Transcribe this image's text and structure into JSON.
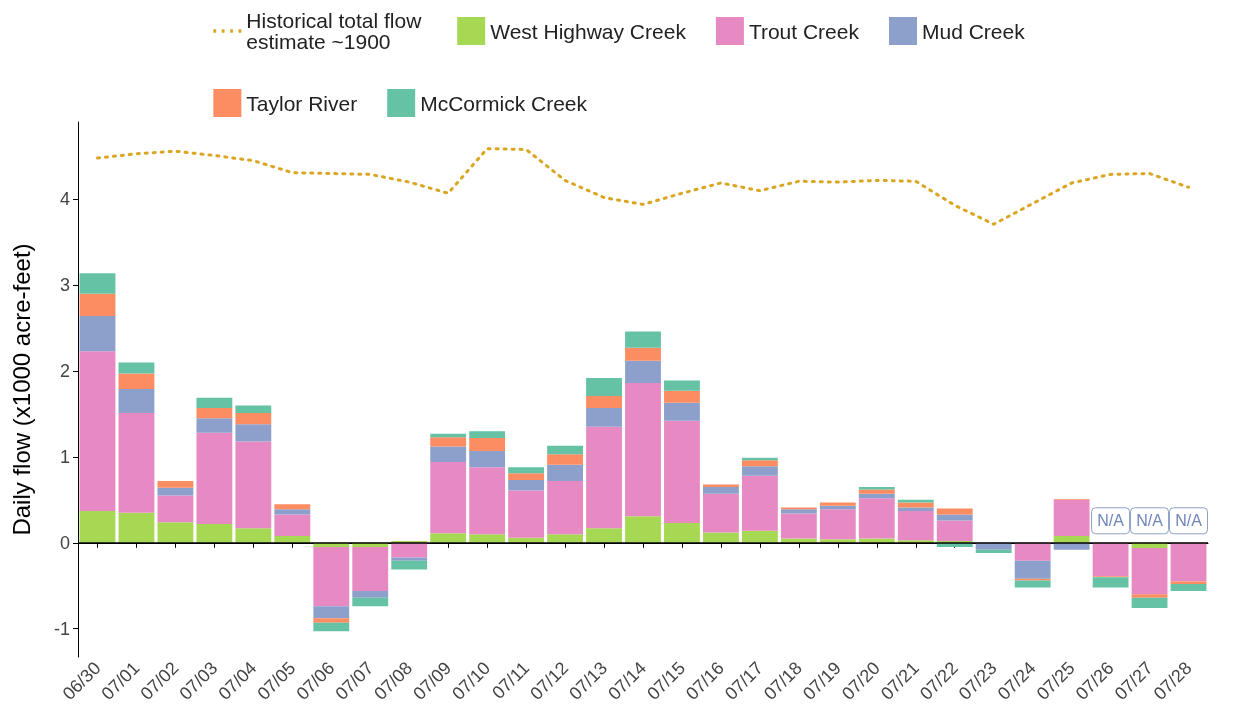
{
  "chart_data": {
    "type": "bar",
    "stacked": true,
    "ylabel": "Daily flow (x1000 acre-feet)",
    "categories": [
      "06/30",
      "07/01",
      "07/02",
      "07/03",
      "07/04",
      "07/05",
      "07/06",
      "07/07",
      "07/08",
      "07/09",
      "07/10",
      "07/11",
      "07/12",
      "07/13",
      "07/14",
      "07/15",
      "07/16",
      "07/17",
      "07/18",
      "07/19",
      "07/20",
      "07/21",
      "07/22",
      "07/23",
      "07/24",
      "07/25",
      "07/26",
      "07/27",
      "07/28"
    ],
    "series": [
      {
        "name": "Historical total flow estimate ~1900",
        "type": "line",
        "color": "#daa520",
        "line_style": "dotted",
        "marker": "none",
        "values": [
          4.48,
          4.53,
          4.56,
          4.51,
          4.45,
          4.31,
          4.3,
          4.29,
          4.2,
          4.07,
          4.59,
          4.58,
          4.22,
          4.02,
          3.94,
          4.07,
          4.19,
          4.1,
          4.21,
          4.2,
          4.22,
          4.21,
          3.93,
          3.71,
          3.95,
          4.19,
          4.29,
          4.3,
          4.14
        ]
      },
      {
        "name": "West Highway Creek",
        "color": "#a6d854",
        "values": [
          0.37,
          0.35,
          0.24,
          0.22,
          0.17,
          0.08,
          -0.05,
          -0.05,
          0.02,
          0.11,
          0.1,
          0.06,
          0.1,
          0.17,
          0.31,
          0.23,
          0.12,
          0.14,
          0.05,
          0.04,
          0.05,
          0.03,
          0.02,
          null,
          null,
          0.08,
          null,
          -0.06,
          null
        ]
      },
      {
        "name": "Trout Creek",
        "color": "#e78ac3",
        "values": [
          1.86,
          1.16,
          0.31,
          1.06,
          1.01,
          0.25,
          -0.69,
          -0.51,
          -0.17,
          0.83,
          0.78,
          0.55,
          0.62,
          1.18,
          1.55,
          1.19,
          0.45,
          0.64,
          0.29,
          0.35,
          0.47,
          0.34,
          0.24,
          null,
          -0.21,
          0.42,
          -0.39,
          -0.54,
          -0.45
        ]
      },
      {
        "name": "Mud Creek",
        "color": "#8da0cb",
        "values": [
          0.41,
          0.28,
          0.09,
          0.17,
          0.2,
          0.06,
          -0.14,
          -0.08,
          -0.04,
          0.18,
          0.19,
          0.12,
          0.19,
          0.22,
          0.26,
          0.21,
          0.08,
          0.11,
          0.05,
          0.04,
          0.05,
          0.04,
          0.07,
          -0.08,
          -0.21,
          -0.08,
          null,
          null,
          null
        ]
      },
      {
        "name": "Taylor River",
        "color": "#fc8d62",
        "values": [
          0.26,
          0.18,
          0.08,
          0.12,
          0.13,
          0.06,
          -0.05,
          null,
          null,
          0.11,
          0.15,
          0.08,
          0.12,
          0.14,
          0.15,
          0.14,
          0.03,
          0.07,
          0.02,
          0.04,
          0.05,
          0.06,
          0.07,
          null,
          -0.02,
          0.01,
          -0.01,
          -0.04,
          -0.03
        ]
      },
      {
        "name": "McCormick Creek",
        "color": "#66c2a5",
        "values": [
          0.24,
          0.13,
          null,
          0.12,
          0.09,
          null,
          -0.1,
          -0.1,
          -0.1,
          0.04,
          0.08,
          0.07,
          0.1,
          0.21,
          0.19,
          0.12,
          null,
          0.03,
          null,
          null,
          0.03,
          0.03,
          -0.05,
          -0.04,
          -0.08,
          null,
          -0.12,
          -0.12,
          -0.08
        ]
      }
    ],
    "ylim": [
      -1.33,
      4.9
    ],
    "yticks": [
      -1,
      0,
      1,
      2,
      3,
      4
    ],
    "grid": false,
    "legend": "top",
    "ref_lines": [
      {
        "axis": "y",
        "value": 0,
        "color": "#000000"
      }
    ],
    "annotations": [
      "N/A",
      "N/A",
      "N/A"
    ]
  }
}
